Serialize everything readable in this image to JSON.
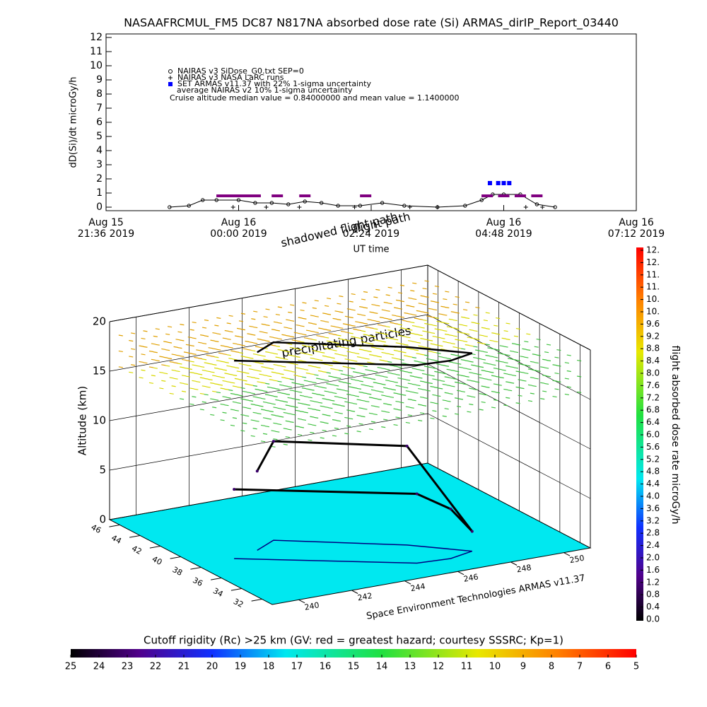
{
  "chart_data": [
    {
      "type": "line",
      "title": "NASAAFRCMUL_FM5 DC87 N817NA absorbed dose rate (Si) ARMAS_dirIP_Report_03440",
      "y_label": "dD(Si)/dt microGy/h",
      "x_label": "UT time",
      "xlim": [
        0,
        9.6
      ],
      "xticks": [
        {
          "value": 0,
          "label": "Aug 15\n21:36 2019"
        },
        {
          "value": 2.4,
          "label": "Aug 16\n00:00 2019"
        },
        {
          "value": 4.8,
          "label": "\n02:24 2019"
        },
        {
          "value": 7.2,
          "label": "Aug 16\n04:48 2019"
        },
        {
          "value": 9.6,
          "label": "Aug 16\n07:12 2019"
        }
      ],
      "ylim": [
        0,
        12
      ],
      "yticks": [
        0,
        1,
        2,
        3,
        4,
        5,
        6,
        7,
        8,
        9,
        10,
        11,
        12
      ],
      "series": [
        {
          "name": "NAIRAS v3 SiDose_G0.txt SEP=0",
          "color": "#000000",
          "x": [
            1.15,
            1.5,
            1.75,
            2.0,
            2.4,
            2.7,
            3.0,
            3.3,
            3.6,
            3.9,
            4.2,
            4.6,
            5.0,
            5.4,
            6.0,
            6.5,
            6.8,
            7.0,
            7.2,
            7.5,
            7.8,
            8.13
          ],
          "values": [
            0,
            0.1,
            0.5,
            0.5,
            0.5,
            0.3,
            0.3,
            0.2,
            0.4,
            0.3,
            0.1,
            0.1,
            0.3,
            0.1,
            0,
            0.1,
            0.5,
            0.9,
            0.9,
            0.9,
            0.2,
            0
          ]
        },
        {
          "name": "NAIRAS v3 NASA LaRC runs",
          "color": "#000000",
          "x": [
            2.3,
            2.9,
            3.5,
            4.5,
            5.5,
            6.0,
            7.6,
            7.9
          ],
          "values": [
            0,
            0,
            0,
            0,
            0,
            0,
            0,
            0
          ]
        },
        {
          "name": "SET ARMAS v11.37 with 22% 1-sigma uncertainty",
          "color": "#0000ff",
          "x": [
            6.95,
            7.1,
            7.2,
            7.3
          ],
          "values": [
            1.7,
            1.7,
            1.7,
            1.7
          ]
        },
        {
          "name": "average NAIRAS v2 10% 1-sigma uncertainty",
          "color": "#800080",
          "x": [
            2.1,
            2.3,
            2.5,
            2.7,
            3.1,
            3.6,
            4.7,
            6.9,
            7.2,
            7.5,
            7.8
          ],
          "values": [
            0.8,
            0.8,
            0.8,
            0.8,
            0.8,
            0.8,
            0.8,
            0.8,
            0.8,
            0.8,
            0.8
          ]
        }
      ],
      "annotation": "Cruise altitude median value = 0.84000000 and mean value = 1.1400000"
    },
    {
      "type": "surface3d",
      "annotations": [
        "shadowed flight path",
        "flight path",
        "precipitating particles"
      ],
      "z_label": "Altitude (km)",
      "credit": "Space Environment Technologies ARMAS v11.37",
      "xlim": [
        239,
        251
      ],
      "xticks": [
        240,
        242,
        244,
        246,
        248,
        250
      ],
      "ylim": [
        31,
        47
      ],
      "yticks": [
        32,
        34,
        36,
        38,
        40,
        42,
        44,
        46
      ],
      "zlim": [
        0,
        20
      ],
      "zticks": [
        0,
        5,
        10,
        15,
        20
      ],
      "floor_color": "#00e8f0",
      "path": {
        "lon": [
          240.4,
          245.3,
          246.5,
          247.5,
          246.0,
          242.5,
          241.5
        ],
        "lat": [
          38.4,
          33.2,
          33.0,
          33.5,
          36.0,
          40.0,
          39.0
        ],
        "alt": [
          7,
          7,
          5,
          2,
          10,
          10,
          8
        ]
      },
      "colorbar": {
        "label": "flight absorbed dose rate microGy/h",
        "lim": [
          0,
          12
        ],
        "ticks": [
          {
            "value": 0,
            "label": "0.0"
          },
          0.4,
          0.8,
          1.2,
          1.6,
          {
            "value": 2,
            "label": "2.0"
          },
          2.4,
          2.8,
          3.2,
          3.6,
          {
            "value": 4,
            "label": "4.0"
          },
          4.4,
          4.8,
          5.2,
          5.6,
          {
            "value": 6,
            "label": "6.0"
          },
          6.4,
          6.8,
          7.2,
          7.6,
          {
            "value": 8,
            "label": "8.0"
          },
          8.4,
          8.8,
          9.2,
          9.6,
          {
            "value": 10,
            "label": "10."
          },
          {
            "value": 10.4,
            "label": "10."
          },
          {
            "value": 10.8,
            "label": "11."
          },
          {
            "value": 11.2,
            "label": "11."
          },
          {
            "value": 11.6,
            "label": "12."
          },
          {
            "value": 12,
            "label": "12."
          }
        ]
      }
    },
    {
      "type": "colorbar",
      "title": "Cutoff rigidity (Rc) >25 km (GV: red = greatest hazard; courtesy SSSRC; Kp=1)",
      "xlim": [
        25,
        5
      ],
      "xticks": [
        25,
        24,
        23,
        22,
        21,
        20,
        19,
        18,
        17,
        16,
        15,
        14,
        13,
        12,
        11,
        10,
        9,
        8,
        7,
        6,
        5
      ]
    }
  ]
}
